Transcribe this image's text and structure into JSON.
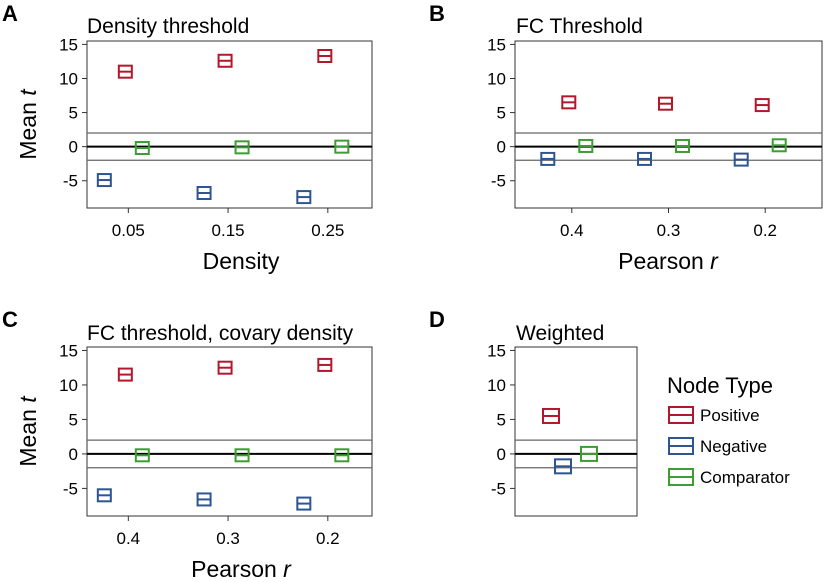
{
  "colors": {
    "Positive": "#b2182b",
    "Negative": "#2c5592",
    "Comparator": "#3e9d32",
    "axis": "#333333",
    "refline": "#666666"
  },
  "shared": {
    "ylabel": "Mean",
    "ylabel_italic": "t",
    "yticks": [
      15,
      10,
      5,
      0,
      -5
    ],
    "ylim": [
      -9,
      15.5
    ],
    "reference_lines": [
      2,
      0,
      -2
    ]
  },
  "legend": {
    "title": "Node Type",
    "items": [
      "Positive",
      "Negative",
      "Comparator"
    ]
  },
  "chart_data": [
    {
      "panel": "A",
      "type": "scatter",
      "title": "Density threshold",
      "xlabel": "Density",
      "xlabel_italic": "",
      "categories": [
        "0.05",
        "0.15",
        "0.25"
      ],
      "series": [
        {
          "name": "Positive",
          "values": [
            11.0,
            12.6,
            13.3
          ]
        },
        {
          "name": "Negative",
          "values": [
            -4.9,
            -6.8,
            -7.4
          ]
        },
        {
          "name": "Comparator",
          "values": [
            -0.2,
            -0.1,
            0.0
          ]
        }
      ]
    },
    {
      "panel": "B",
      "type": "scatter",
      "title": "FC Threshold",
      "xlabel": "Pearson",
      "xlabel_italic": "r",
      "categories": [
        "0.4",
        "0.3",
        "0.2"
      ],
      "series": [
        {
          "name": "Positive",
          "values": [
            6.5,
            6.3,
            6.1
          ]
        },
        {
          "name": "Negative",
          "values": [
            -1.8,
            -1.8,
            -1.9
          ]
        },
        {
          "name": "Comparator",
          "values": [
            0.1,
            0.1,
            0.2
          ]
        }
      ]
    },
    {
      "panel": "C",
      "type": "scatter",
      "title": "FC threshold, covary density",
      "xlabel": "Pearson",
      "xlabel_italic": "r",
      "categories": [
        "0.4",
        "0.3",
        "0.2"
      ],
      "series": [
        {
          "name": "Positive",
          "values": [
            11.5,
            12.5,
            12.9
          ]
        },
        {
          "name": "Negative",
          "values": [
            -6.0,
            -6.6,
            -7.2
          ]
        },
        {
          "name": "Comparator",
          "values": [
            -0.2,
            -0.2,
            -0.2
          ]
        }
      ]
    },
    {
      "panel": "D",
      "type": "scatter",
      "title": "Weighted",
      "xlabel": "",
      "xlabel_italic": "",
      "categories": [
        ""
      ],
      "series": [
        {
          "name": "Positive",
          "values": [
            5.5
          ]
        },
        {
          "name": "Negative",
          "values": [
            -1.8
          ]
        },
        {
          "name": "Comparator",
          "values": [
            0.0
          ]
        }
      ]
    }
  ]
}
